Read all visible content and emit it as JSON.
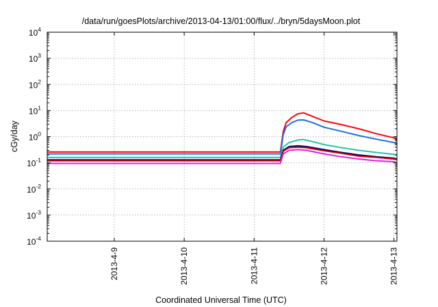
{
  "chart_data": {
    "type": "line",
    "title": "/data/run/goesPlots/archive/2013-04-13/01:00/flux/../bryn/5daysMoon.plot",
    "xlabel": "Coordinated Universal Time (UTC)",
    "ylabel": "cGy/day",
    "yscale": "log",
    "ylim": [
      0.0001,
      10000
    ],
    "yticks": [
      {
        "base": "10",
        "exp": "4"
      },
      {
        "base": "10",
        "exp": "3"
      },
      {
        "base": "10",
        "exp": "2"
      },
      {
        "base": "10",
        "exp": "1"
      },
      {
        "base": "10",
        "exp": "0"
      },
      {
        "base": "10",
        "exp": "-1"
      },
      {
        "base": "10",
        "exp": "-2"
      },
      {
        "base": "10",
        "exp": "-3"
      },
      {
        "base": "10",
        "exp": "-4"
      }
    ],
    "xlim": [
      "2013-04-08T01:00",
      "2013-04-13T01:00"
    ],
    "xticks": [
      "2013-4-9",
      "2013-4-10",
      "2013-4-11",
      "2013-4-12",
      "2013-4-13"
    ],
    "grid": true,
    "series": [
      {
        "color": "#ff0000",
        "values": [
          [
            "2013-04-08T01:00",
            0.26
          ],
          [
            "2013-04-08T12:00",
            0.26
          ],
          [
            "2013-04-09T00:00",
            0.26
          ],
          [
            "2013-04-09T12:00",
            0.26
          ],
          [
            "2013-04-10T00:00",
            0.26
          ],
          [
            "2013-04-10T12:00",
            0.26
          ],
          [
            "2013-04-11T00:00",
            0.26
          ],
          [
            "2013-04-11T09:00",
            0.26
          ],
          [
            "2013-04-11T10:00",
            1.6
          ],
          [
            "2013-04-11T11:00",
            3.5
          ],
          [
            "2013-04-11T13:00",
            5.5
          ],
          [
            "2013-04-11T15:00",
            7.5
          ],
          [
            "2013-04-11T17:00",
            8.2
          ],
          [
            "2013-04-11T20:00",
            6.0
          ],
          [
            "2013-04-12T00:00",
            4.0
          ],
          [
            "2013-04-12T06:00",
            2.9
          ],
          [
            "2013-04-12T12:00",
            2.0
          ],
          [
            "2013-04-12T18:00",
            1.3
          ],
          [
            "2013-04-13T00:00",
            0.9
          ],
          [
            "2013-04-13T01:00",
            0.75
          ]
        ]
      },
      {
        "color": "#1f6fe0",
        "values": [
          [
            "2013-04-08T01:00",
            0.22
          ],
          [
            "2013-04-08T12:00",
            0.22
          ],
          [
            "2013-04-09T00:00",
            0.22
          ],
          [
            "2013-04-09T12:00",
            0.22
          ],
          [
            "2013-04-10T00:00",
            0.22
          ],
          [
            "2013-04-10T12:00",
            0.22
          ],
          [
            "2013-04-11T00:00",
            0.22
          ],
          [
            "2013-04-11T09:00",
            0.22
          ],
          [
            "2013-04-11T10:00",
            1.2
          ],
          [
            "2013-04-11T11:00",
            2.4
          ],
          [
            "2013-04-11T13:00",
            3.5
          ],
          [
            "2013-04-11T15:00",
            4.3
          ],
          [
            "2013-04-11T17:00",
            4.4
          ],
          [
            "2013-04-11T20:00",
            3.5
          ],
          [
            "2013-04-12T00:00",
            2.3
          ],
          [
            "2013-04-12T06:00",
            1.6
          ],
          [
            "2013-04-12T12:00",
            1.1
          ],
          [
            "2013-04-12T18:00",
            0.8
          ],
          [
            "2013-04-13T00:00",
            0.6
          ],
          [
            "2013-04-13T01:00",
            0.52
          ]
        ]
      },
      {
        "color": "#20c8a0",
        "values": [
          [
            "2013-04-08T01:00",
            0.16
          ],
          [
            "2013-04-08T12:00",
            0.16
          ],
          [
            "2013-04-09T00:00",
            0.16
          ],
          [
            "2013-04-09T12:00",
            0.16
          ],
          [
            "2013-04-10T00:00",
            0.16
          ],
          [
            "2013-04-10T12:00",
            0.16
          ],
          [
            "2013-04-11T00:00",
            0.16
          ],
          [
            "2013-04-11T09:00",
            0.16
          ],
          [
            "2013-04-11T10:00",
            0.4
          ],
          [
            "2013-04-11T12:00",
            0.6
          ],
          [
            "2013-04-11T15:00",
            0.75
          ],
          [
            "2013-04-11T17:00",
            0.78
          ],
          [
            "2013-04-11T20:00",
            0.65
          ],
          [
            "2013-04-12T00:00",
            0.5
          ],
          [
            "2013-04-12T06:00",
            0.38
          ],
          [
            "2013-04-12T12:00",
            0.3
          ],
          [
            "2013-04-12T18:00",
            0.25
          ],
          [
            "2013-04-13T00:00",
            0.21
          ],
          [
            "2013-04-13T01:00",
            0.2
          ]
        ]
      },
      {
        "color": "#000080",
        "values": [
          [
            "2013-04-08T01:00",
            0.13
          ],
          [
            "2013-04-08T12:00",
            0.13
          ],
          [
            "2013-04-09T00:00",
            0.13
          ],
          [
            "2013-04-09T12:00",
            0.13
          ],
          [
            "2013-04-10T00:00",
            0.13
          ],
          [
            "2013-04-10T12:00",
            0.13
          ],
          [
            "2013-04-11T00:00",
            0.13
          ],
          [
            "2013-04-11T09:00",
            0.13
          ],
          [
            "2013-04-11T10:00",
            0.3
          ],
          [
            "2013-04-11T12:00",
            0.42
          ],
          [
            "2013-04-11T15:00",
            0.45
          ],
          [
            "2013-04-11T18:00",
            0.42
          ],
          [
            "2013-04-12T00:00",
            0.32
          ],
          [
            "2013-04-12T06:00",
            0.25
          ],
          [
            "2013-04-12T12:00",
            0.2
          ],
          [
            "2013-04-12T18:00",
            0.17
          ],
          [
            "2013-04-13T00:00",
            0.15
          ],
          [
            "2013-04-13T01:00",
            0.14
          ]
        ]
      },
      {
        "color": "#cc0000",
        "values": [
          [
            "2013-04-08T01:00",
            0.12
          ],
          [
            "2013-04-08T12:00",
            0.12
          ],
          [
            "2013-04-09T00:00",
            0.12
          ],
          [
            "2013-04-09T12:00",
            0.12
          ],
          [
            "2013-04-10T00:00",
            0.12
          ],
          [
            "2013-04-10T12:00",
            0.12
          ],
          [
            "2013-04-11T00:00",
            0.12
          ],
          [
            "2013-04-11T09:00",
            0.12
          ],
          [
            "2013-04-11T10:00",
            0.28
          ],
          [
            "2013-04-11T12:00",
            0.38
          ],
          [
            "2013-04-11T15:00",
            0.4
          ],
          [
            "2013-04-11T18:00",
            0.38
          ],
          [
            "2013-04-12T00:00",
            0.29
          ],
          [
            "2013-04-12T06:00",
            0.23
          ],
          [
            "2013-04-12T12:00",
            0.18
          ],
          [
            "2013-04-12T18:00",
            0.16
          ],
          [
            "2013-04-13T00:00",
            0.14
          ],
          [
            "2013-04-13T01:00",
            0.13
          ]
        ]
      },
      {
        "color": "#e020e0",
        "values": [
          [
            "2013-04-08T01:00",
            0.095
          ],
          [
            "2013-04-08T12:00",
            0.095
          ],
          [
            "2013-04-09T00:00",
            0.095
          ],
          [
            "2013-04-09T12:00",
            0.095
          ],
          [
            "2013-04-10T00:00",
            0.095
          ],
          [
            "2013-04-10T12:00",
            0.095
          ],
          [
            "2013-04-11T00:00",
            0.095
          ],
          [
            "2013-04-11T09:00",
            0.095
          ],
          [
            "2013-04-11T10:00",
            0.22
          ],
          [
            "2013-04-11T12:00",
            0.3
          ],
          [
            "2013-04-11T15:00",
            0.32
          ],
          [
            "2013-04-11T18:00",
            0.3
          ],
          [
            "2013-04-12T00:00",
            0.22
          ],
          [
            "2013-04-12T06:00",
            0.17
          ],
          [
            "2013-04-12T12:00",
            0.14
          ],
          [
            "2013-04-12T18:00",
            0.12
          ],
          [
            "2013-04-13T00:00",
            0.11
          ],
          [
            "2013-04-13T01:00",
            0.1
          ]
        ]
      }
    ]
  }
}
